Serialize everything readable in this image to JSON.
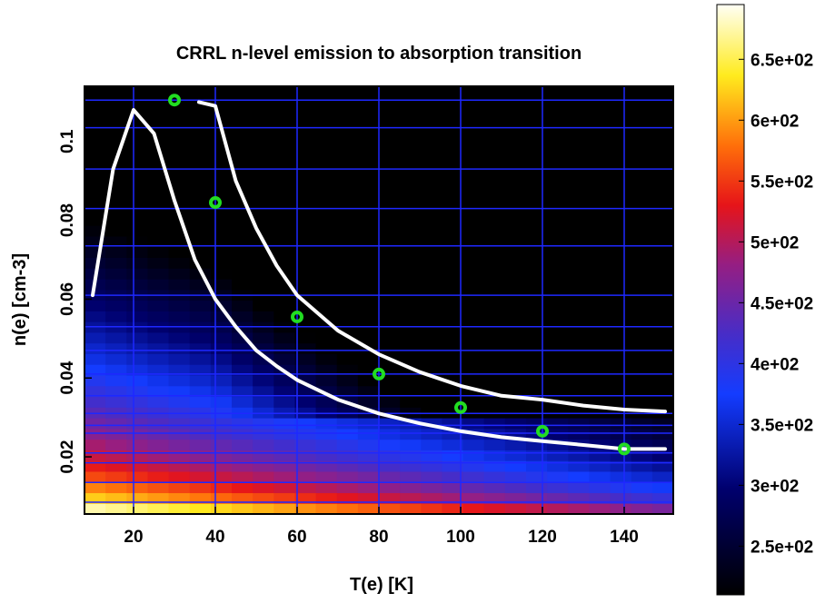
{
  "chart_data": {
    "type": "heatmap",
    "title": "CRRL n-level emission to absorption transition",
    "xlabel": "T(e)  [K]",
    "ylabel": "n(e)  [cm-3]",
    "xlim": [
      8,
      152
    ],
    "ylim": [
      0.0055,
      0.114
    ],
    "x_ticks": [
      20,
      40,
      60,
      80,
      100,
      120,
      140
    ],
    "x_tick_labels": [
      "20",
      "40",
      "60",
      "80",
      "100",
      "120",
      "140"
    ],
    "y_ticks": [
      0.02,
      0.04,
      0.06,
      0.08,
      0.1
    ],
    "y_tick_labels": [
      "0.02",
      "0.04",
      "0.06",
      "0.08",
      "0.1"
    ],
    "grid": true,
    "grid_x": [
      20,
      40,
      60,
      80,
      100,
      120,
      140
    ],
    "grid_y": [
      0.0085,
      0.0135,
      0.0185,
      0.021,
      0.026,
      0.028,
      0.031,
      0.0355,
      0.041,
      0.047,
      0.053,
      0.061,
      0.0735,
      0.083,
      0.093,
      0.1035,
      0.1105
    ],
    "colorbar": {
      "min": 210,
      "max": 695,
      "colormap": "black-blue-purple-red-orange-yellow-white",
      "ticks": [
        250,
        300,
        350,
        400,
        450,
        500,
        550,
        600,
        650
      ],
      "tick_labels": [
        "2.5e+02",
        "3e+02",
        "3.5e+02",
        "4e+02",
        "4.5e+02",
        "5e+02",
        "5.5e+02",
        "6e+02",
        "6.5e+02"
      ]
    },
    "colors": {
      "curve": "#ffffff",
      "markers_stroke": "#22dd22",
      "grid": "#1e28ff",
      "black_region": "#000000"
    },
    "series": [
      {
        "style": "white-line",
        "x": [
          10,
          15,
          20,
          25,
          30,
          35,
          40,
          45,
          50,
          55,
          60,
          70,
          80,
          90,
          100,
          110,
          120,
          130,
          140,
          150
        ],
        "y": [
          0.061,
          0.093,
          0.108,
          0.102,
          0.085,
          0.07,
          0.06,
          0.053,
          0.047,
          0.043,
          0.0395,
          0.0345,
          0.031,
          0.0285,
          0.0265,
          0.025,
          0.024,
          0.023,
          0.022,
          0.022
        ]
      },
      {
        "style": "white-line",
        "x": [
          36,
          40,
          45,
          50,
          55,
          60,
          70,
          80,
          90,
          100,
          110,
          120,
          130,
          140,
          150
        ],
        "y": [
          0.11,
          0.109,
          0.09,
          0.078,
          0.0685,
          0.061,
          0.052,
          0.046,
          0.0415,
          0.038,
          0.0355,
          0.0345,
          0.033,
          0.032,
          0.0315
        ]
      },
      {
        "style": "green-circles",
        "x": [
          30,
          40,
          60,
          80,
          100,
          120,
          140
        ],
        "y": [
          0.1105,
          0.0845,
          0.0555,
          0.041,
          0.0325,
          0.0265,
          0.022
        ]
      }
    ]
  }
}
